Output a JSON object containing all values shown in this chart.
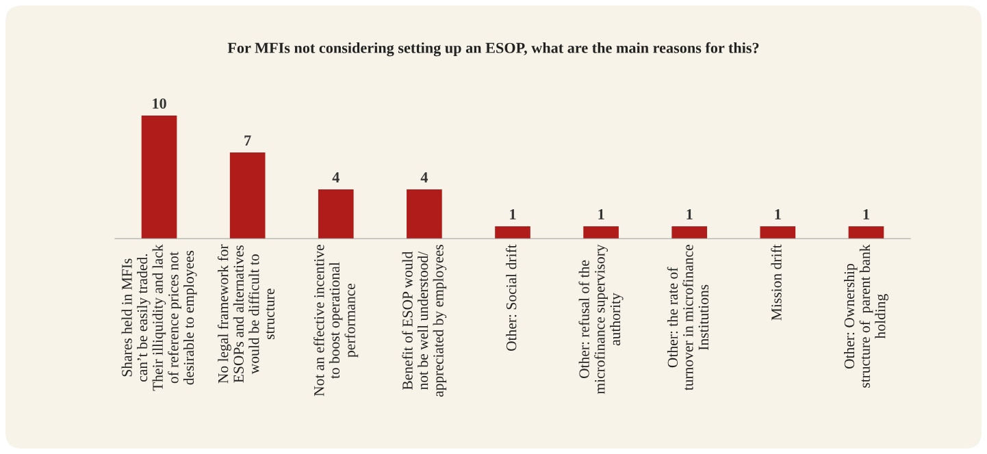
{
  "chart_data": {
    "type": "bar",
    "title": "For MFIs not considering setting up an ESOP, what are the main reasons for this?",
    "categories": [
      "Shares held in MFIs\ncan’t be easily traded.\nTheir illiquidity and lack\nof reference prices not\ndesirable to employees",
      "No legal framework for\nESOPs and alternatives\nwould be difficult to\nstructure",
      "Not an effective incentive\nto boost operational\nperformance",
      "Benefit of ESOP would\nnot be well understood/\nappreciated by employees",
      "Other: Social drift",
      "Other: refusal of the\nmicrofinance supervisory\nauthority",
      "Other: the rate of\nturnover in microfinance\nInstitutions",
      "Mission drift",
      "Other: Ownership\nstructure of  parent bank\nholding"
    ],
    "values": [
      10,
      7,
      4,
      4,
      1,
      1,
      1,
      1,
      1
    ],
    "color": "#b01c1a",
    "data_labels": true,
    "grid": false,
    "legend": false
  }
}
